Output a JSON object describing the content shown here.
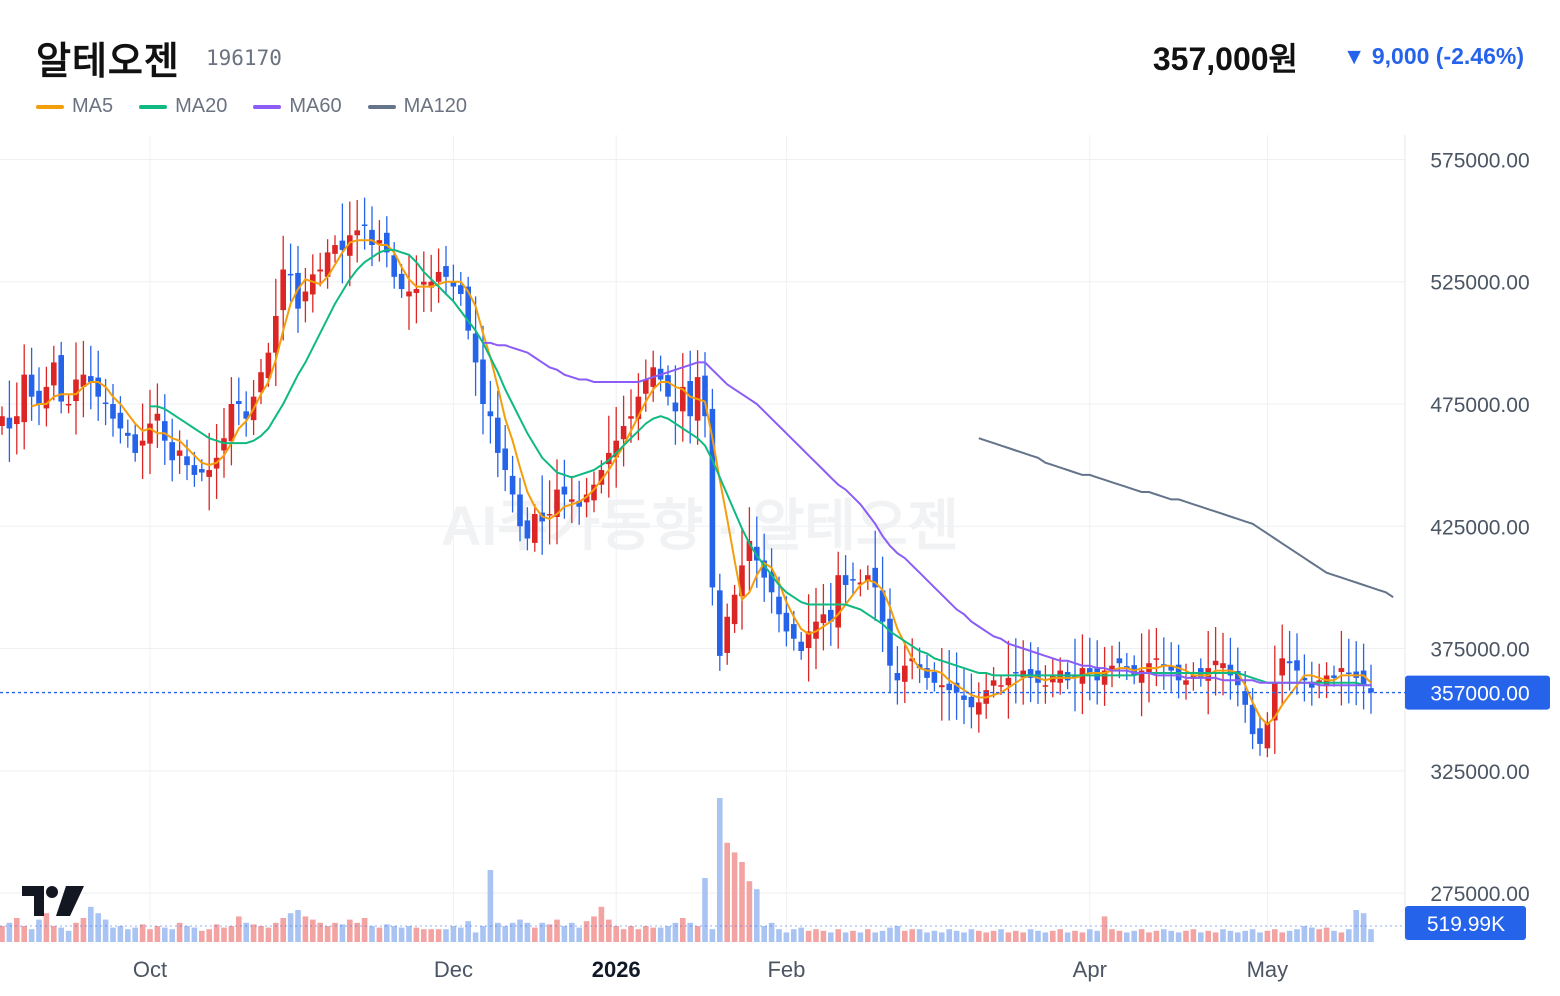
{
  "header": {
    "name": "알테오젠",
    "code": "196170",
    "price": "357,000원",
    "change": "▼ 9,000 (-2.46%)"
  },
  "legend": [
    {
      "label": "MA5",
      "color": "#f59e0b"
    },
    {
      "label": "MA20",
      "color": "#10b981"
    },
    {
      "label": "MA60",
      "color": "#8b5cf6"
    },
    {
      "label": "MA120",
      "color": "#64748b"
    }
  ],
  "watermark": "AI주가동향 - 알테오젠",
  "colors": {
    "up": "#dc2626",
    "down": "#2563eb",
    "upVol": "#f4a3a3",
    "downVol": "#a9c3f3",
    "accent": "#2563eb"
  },
  "chart_data": {
    "type": "candlestick",
    "ylim": [
      255000,
      585000
    ],
    "y_ticks": [
      575000,
      525000,
      475000,
      425000,
      375000,
      325000,
      275000
    ],
    "y_tick_labels": [
      "575000.00",
      "525000.00",
      "475000.00",
      "425000.00",
      "375000.00",
      "325000.00",
      "275000.00"
    ],
    "x_labels": [
      {
        "label": "Oct",
        "index": 20,
        "bold": false
      },
      {
        "label": "Dec",
        "index": 61,
        "bold": false
      },
      {
        "label": "2026",
        "index": 83,
        "bold": true
      },
      {
        "label": "Feb",
        "index": 106,
        "bold": false
      },
      {
        "label": "Apr",
        "index": 147,
        "bold": false
      },
      {
        "label": "May",
        "index": 171,
        "bold": false
      }
    ],
    "last_price": 357000,
    "last_price_label": "357000.00",
    "last_volume_label": "519.99K",
    "closes": [
      470000,
      465000,
      470000,
      487000,
      478000,
      475000,
      482000,
      492000,
      476000,
      475000,
      485000,
      487000,
      484000,
      478000,
      475000,
      469000,
      465000,
      462000,
      455000,
      460000,
      467000,
      471000,
      460000,
      452000,
      456000,
      450000,
      446000,
      447000,
      448000,
      453000,
      461000,
      475000,
      475000,
      469000,
      478000,
      488000,
      496000,
      511000,
      530000,
      528000,
      514000,
      521000,
      528000,
      530000,
      537000,
      540000,
      538000,
      544000,
      546000,
      548000,
      540000,
      542000,
      537000,
      527000,
      522000,
      521000,
      522000,
      525000,
      525000,
      529000,
      527000,
      523000,
      520000,
      505000,
      492000,
      475000,
      470000,
      455000,
      448000,
      438000,
      425000,
      420000,
      430000,
      427000,
      430000,
      440000,
      438000,
      436000,
      433000,
      438000,
      442000,
      448000,
      455000,
      460000,
      466000,
      470000,
      478000,
      485000,
      490000,
      485000,
      478000,
      472000,
      482000,
      470000,
      486000,
      470000,
      400000,
      372000,
      388000,
      397000,
      409000,
      419000,
      411000,
      404000,
      398000,
      389000,
      382000,
      379000,
      374000,
      382000,
      386000,
      389000,
      386000,
      405000,
      401000,
      403000,
      402000,
      405000,
      400000,
      386000,
      368000,
      362000,
      368000,
      371000,
      367000,
      363000,
      361000,
      360000,
      358000,
      357000,
      354000,
      351000,
      353000,
      358000,
      362000,
      360000,
      363000,
      365000,
      366000,
      363000,
      361000,
      360000,
      364000,
      366000,
      362000,
      363000,
      367000,
      365000,
      362000,
      366000,
      368000,
      369000,
      367000,
      364000,
      366000,
      369000,
      371000,
      368000,
      366000,
      362000,
      362000,
      364000,
      363000,
      367000,
      370000,
      369000,
      364000,
      360000,
      352000,
      340000,
      336000,
      345000,
      361000,
      371000,
      369000,
      366000,
      362000,
      359000,
      362000,
      364000,
      363000,
      367000,
      365000,
      363000,
      360000,
      357000
    ],
    "ma5": [
      null,
      null,
      null,
      null,
      474000,
      475000,
      475000,
      478000,
      479000,
      479000,
      479000,
      482000,
      484000,
      484000,
      482000,
      478000,
      475000,
      471000,
      467000,
      464000,
      465000,
      463000,
      463000,
      461000,
      460000,
      457000,
      454000,
      451000,
      450000,
      451000,
      454000,
      459000,
      465000,
      468000,
      473000,
      479000,
      484000,
      493000,
      505000,
      516000,
      522000,
      526000,
      525000,
      524000,
      527000,
      532000,
      537000,
      541000,
      542000,
      542000,
      542000,
      540000,
      540000,
      537000,
      531000,
      526000,
      523000,
      523000,
      523000,
      524000,
      525000,
      525000,
      525000,
      521000,
      515000,
      504000,
      494000,
      482000,
      469000,
      460000,
      449000,
      439000,
      433000,
      429000,
      428000,
      430000,
      433000,
      434000,
      435000,
      437000,
      440000,
      444000,
      448000,
      453000,
      458000,
      464000,
      470000,
      476000,
      481000,
      484000,
      484000,
      482000,
      481000,
      478000,
      477000,
      476000,
      461000,
      444000,
      428000,
      411000,
      395000,
      398000,
      405000,
      410000,
      408000,
      402000,
      394000,
      388000,
      383000,
      381000,
      382000,
      384000,
      386000,
      389000,
      393000,
      397000,
      401000,
      403000,
      402000,
      399000,
      392000,
      383000,
      377000,
      371000,
      367000,
      366000,
      366000,
      365000,
      362000,
      360000,
      358000,
      356000,
      355000,
      355000,
      356000,
      357000,
      359000,
      361000,
      363000,
      364000,
      363000,
      362000,
      363000,
      363000,
      363000,
      363000,
      364000,
      365000,
      365000,
      365000,
      366000,
      367000,
      367000,
      366000,
      367000,
      367000,
      367000,
      368000,
      368000,
      367000,
      366000,
      364000,
      364000,
      364000,
      366000,
      366000,
      366000,
      365000,
      360000,
      353000,
      347000,
      344000,
      347000,
      352000,
      356000,
      360000,
      364000,
      364000,
      363000,
      362000,
      362000,
      364000,
      364000,
      364000,
      364000,
      361000
    ],
    "ma20": [
      null,
      null,
      null,
      null,
      null,
      null,
      null,
      null,
      null,
      null,
      null,
      null,
      null,
      null,
      null,
      null,
      null,
      null,
      null,
      null,
      474000,
      474000,
      473000,
      471000,
      469000,
      467000,
      465000,
      463000,
      461000,
      460000,
      459000,
      459000,
      459000,
      459000,
      460000,
      462000,
      465000,
      470000,
      475000,
      481000,
      487000,
      492000,
      498000,
      504000,
      510000,
      516000,
      521000,
      526000,
      530000,
      533000,
      535000,
      537000,
      538000,
      538000,
      537000,
      536000,
      533000,
      529000,
      526000,
      523000,
      520000,
      517000,
      513000,
      509000,
      505000,
      500000,
      494000,
      488000,
      481000,
      475000,
      469000,
      463000,
      458000,
      453000,
      450000,
      447000,
      446000,
      445000,
      446000,
      447000,
      448000,
      450000,
      452000,
      455000,
      458000,
      461000,
      464000,
      467000,
      469000,
      470000,
      469000,
      467000,
      465000,
      463000,
      461000,
      458000,
      452000,
      445000,
      438000,
      431000,
      424000,
      418000,
      413000,
      409000,
      405000,
      401000,
      398000,
      396000,
      394000,
      393000,
      393000,
      393000,
      393000,
      393000,
      393000,
      392000,
      391000,
      389000,
      387000,
      385000,
      382000,
      380000,
      378000,
      376000,
      374000,
      373000,
      371000,
      370000,
      369000,
      368000,
      367000,
      366000,
      365000,
      365000,
      364000,
      364000,
      364000,
      364000,
      364000,
      364000,
      364000,
      364000,
      364000,
      364000,
      364000,
      364000,
      364000,
      364000,
      364000,
      364000,
      364000,
      364000,
      364000,
      364000,
      365000,
      365000,
      365000,
      365000,
      365000,
      365000,
      365000,
      365000,
      365000,
      365000,
      365000,
      365000,
      365000,
      365000,
      364000,
      363000,
      362000,
      361000,
      361000,
      361000,
      361000,
      361000,
      361000,
      361000,
      361000,
      361000,
      361000,
      361000,
      361000,
      361000,
      360000,
      360000
    ],
    "ma60": [
      null,
      null,
      null,
      null,
      null,
      null,
      null,
      null,
      null,
      null,
      null,
      null,
      null,
      null,
      null,
      null,
      null,
      null,
      null,
      null,
      null,
      null,
      null,
      null,
      null,
      null,
      null,
      null,
      null,
      null,
      null,
      null,
      null,
      null,
      null,
      null,
      null,
      null,
      null,
      null,
      null,
      null,
      null,
      null,
      null,
      null,
      null,
      null,
      null,
      null,
      null,
      null,
      null,
      null,
      null,
      null,
      null,
      null,
      null,
      null,
      null,
      null,
      null,
      null,
      null,
      500000,
      500000,
      499000,
      499000,
      498000,
      497000,
      496000,
      494000,
      492000,
      490000,
      489000,
      487000,
      486000,
      485000,
      485000,
      484000,
      484000,
      484000,
      484000,
      484000,
      484000,
      484000,
      485000,
      486000,
      487000,
      488000,
      489000,
      490000,
      491000,
      492000,
      492000,
      489000,
      486000,
      483000,
      481000,
      479000,
      477000,
      475000,
      472000,
      469000,
      466000,
      463000,
      460000,
      457000,
      454000,
      451000,
      448000,
      445000,
      442000,
      440000,
      437000,
      434000,
      430000,
      426000,
      421000,
      417000,
      414000,
      412000,
      409000,
      406000,
      403000,
      400000,
      397000,
      394000,
      391000,
      389000,
      386000,
      384000,
      382000,
      380000,
      379000,
      377000,
      376000,
      375000,
      374000,
      373000,
      372000,
      371000,
      370000,
      370000,
      369000,
      368000,
      368000,
      367000,
      367000,
      366000,
      366000,
      366000,
      365000,
      365000,
      365000,
      364000,
      364000,
      364000,
      364000,
      363000,
      363000,
      363000,
      363000,
      363000,
      362000,
      362000,
      362000,
      362000,
      362000,
      361000,
      361000,
      361000,
      361000,
      361000,
      361000,
      361000,
      361000,
      360000,
      360000,
      360000,
      360000,
      360000,
      360000,
      360000,
      360000
    ],
    "ma120": [
      null,
      null,
      null,
      null,
      null,
      null,
      null,
      null,
      null,
      null,
      null,
      null,
      null,
      null,
      null,
      null,
      null,
      null,
      null,
      null,
      null,
      null,
      null,
      null,
      null,
      null,
      null,
      null,
      null,
      null,
      null,
      null,
      null,
      null,
      null,
      null,
      null,
      null,
      null,
      null,
      null,
      null,
      null,
      null,
      null,
      null,
      null,
      null,
      null,
      null,
      null,
      null,
      null,
      null,
      null,
      null,
      null,
      null,
      null,
      null,
      null,
      null,
      null,
      null,
      null,
      null,
      null,
      null,
      null,
      null,
      null,
      null,
      null,
      null,
      null,
      null,
      null,
      null,
      null,
      null,
      null,
      null,
      null,
      null,
      null,
      null,
      null,
      null,
      null,
      null,
      null,
      null,
      null,
      null,
      null,
      null,
      null,
      null,
      null,
      null,
      null,
      null,
      null,
      null,
      null,
      null,
      null,
      null,
      null,
      null,
      null,
      null,
      null,
      null,
      null,
      null,
      null,
      null,
      null,
      null,
      null,
      null,
      null,
      null,
      null,
      null,
      null,
      null,
      null,
      null,
      null,
      null,
      461000,
      460000,
      459000,
      458000,
      457000,
      456000,
      455000,
      454000,
      453000,
      451000,
      450000,
      449000,
      448000,
      447000,
      446000,
      446000,
      445000,
      444000,
      443000,
      442000,
      441000,
      440000,
      439000,
      439000,
      438000,
      437000,
      436000,
      436000,
      435000,
      434000,
      433000,
      432000,
      431000,
      430000,
      429000,
      428000,
      427000,
      426000,
      424000,
      422000,
      420000,
      418000,
      416000,
      414000,
      412000,
      410000,
      408000,
      406000,
      405000,
      404000,
      403000,
      402000,
      401000,
      400000,
      399000,
      398000,
      396000
    ],
    "volumes": [
      0.1,
      0.12,
      0.15,
      0.1,
      0.08,
      0.14,
      0.18,
      0.1,
      0.09,
      0.07,
      0.12,
      0.15,
      0.22,
      0.18,
      0.14,
      0.09,
      0.1,
      0.08,
      0.09,
      0.11,
      0.08,
      0.1,
      0.09,
      0.08,
      0.12,
      0.1,
      0.09,
      0.07,
      0.08,
      0.11,
      0.09,
      0.1,
      0.16,
      0.12,
      0.11,
      0.1,
      0.09,
      0.12,
      0.15,
      0.18,
      0.2,
      0.16,
      0.14,
      0.12,
      0.1,
      0.12,
      0.11,
      0.14,
      0.12,
      0.15,
      0.1,
      0.09,
      0.11,
      0.1,
      0.09,
      0.1,
      0.09,
      0.08,
      0.08,
      0.08,
      0.08,
      0.1,
      0.09,
      0.13,
      0.06,
      0.1,
      0.3,
      0.12,
      0.1,
      0.12,
      0.14,
      0.12,
      0.09,
      0.12,
      0.11,
      0.14,
      0.1,
      0.12,
      0.09,
      0.13,
      0.16,
      0.22,
      0.14,
      0.1,
      0.08,
      0.1,
      0.08,
      0.1,
      0.09,
      0.09,
      0.1,
      0.12,
      0.15,
      0.12,
      0.1,
      0.18,
      0.08,
      0.1,
      0.2,
      0.14,
      0.25,
      0.13,
      0.16,
      0.1,
      0.12,
      0.08,
      0.06,
      0.08,
      0.09,
      0.07,
      0.08,
      0.07,
      0.06,
      0.08,
      0.06,
      0.07,
      0.06,
      0.08,
      0.06,
      0.07,
      0.09,
      0.1,
      0.07,
      0.08,
      0.08,
      0.06,
      0.07,
      0.06,
      0.08,
      0.07,
      0.06,
      0.08,
      0.07,
      0.06,
      0.07,
      0.08,
      0.06,
      0.07,
      0.06,
      0.08,
      0.07,
      0.06,
      0.07,
      0.08,
      0.06,
      0.07,
      0.06,
      0.08,
      0.07,
      0.06,
      0.08,
      0.07,
      0.06,
      0.07,
      0.08,
      0.06,
      0.07,
      0.08,
      0.07,
      0.06,
      0.07,
      0.08,
      0.06,
      0.07,
      0.06,
      0.08,
      0.07,
      0.06,
      0.07,
      0.08,
      0.06,
      0.07,
      0.08,
      0.06,
      0.07,
      0.08,
      0.1,
      0.09,
      0.08,
      0.09,
      0.07,
      0.06,
      0.08,
      0.07,
      0.06,
      0.08,
      0.07,
      0.06,
      0.07,
      0.08,
      0.06,
      0.07,
      0.06,
      0.07
    ],
    "vol_spikes": {
      "66": 0.45,
      "95": 0.4,
      "97": 0.9,
      "98": 0.62,
      "99": 0.56,
      "100": 0.5,
      "101": 0.38,
      "102": 0.33,
      "149": 0.16,
      "183": 0.2,
      "184": 0.18,
      "191": 0.17,
      "195": 0.16,
      "198": 0.16
    }
  }
}
